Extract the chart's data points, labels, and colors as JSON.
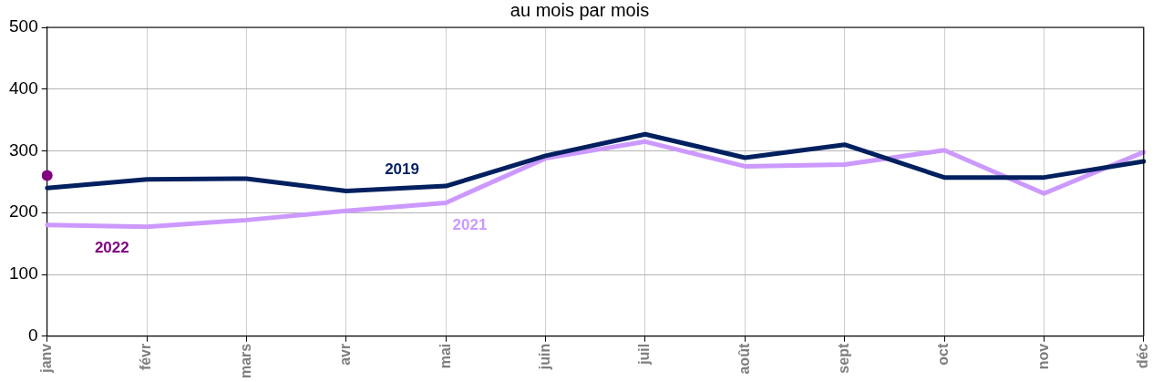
{
  "chart_data": {
    "type": "line",
    "title": "au mois par mois",
    "categories": [
      "janv",
      "févr",
      "mars",
      "avr",
      "mai",
      "juin",
      "juil",
      "août",
      "sept",
      "oct",
      "nov",
      "déc"
    ],
    "series": [
      {
        "name": "2019",
        "color": "#00205f",
        "marker": "none",
        "values": [
          240,
          254,
          255,
          235,
          243,
          292,
          327,
          289,
          310,
          257,
          257,
          283
        ]
      },
      {
        "name": "2021",
        "color": "#cc99ff",
        "marker": "none",
        "values": [
          180,
          177,
          188,
          203,
          216,
          288,
          315,
          275,
          278,
          301,
          231,
          298
        ]
      },
      {
        "name": "2022",
        "color": "#800080",
        "marker": "circle",
        "values": [
          260,
          null,
          null,
          null,
          null,
          null,
          null,
          null,
          null,
          null,
          null,
          null
        ]
      }
    ],
    "ylim": [
      0,
      500
    ],
    "yticks": [
      0,
      100,
      200,
      300,
      400,
      500
    ],
    "grid": true,
    "legend": false
  }
}
